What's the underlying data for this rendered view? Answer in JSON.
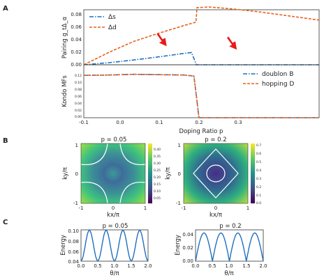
{
  "panels": {
    "A": "A",
    "B": "B",
    "C": "C"
  },
  "colors": {
    "blue": "#1f6fbf",
    "orange": "#e8601a",
    "arrow": "#e81a1a"
  },
  "chart_data": [
    {
      "id": "pairing",
      "type": "line",
      "panel": "A",
      "ylabel": "Pairing g_tΔ_α",
      "xlim": [
        -0.1,
        0.37
      ],
      "ylim": [
        0,
        0.08
      ],
      "yticks": [
        "0.00",
        "0.02",
        "0.04",
        "0.06",
        "0.08"
      ],
      "legend_position": "top-left",
      "series": [
        {
          "name": "Δs",
          "color": "#1f6fbf",
          "style": "dashdot",
          "x": [
            -0.1,
            -0.05,
            0.0,
            0.05,
            0.1,
            0.115,
            0.125,
            0.37
          ],
          "y": [
            0.0,
            0.003,
            0.007,
            0.0115,
            0.0165,
            0.0178,
            0.0,
            0.0
          ]
        },
        {
          "name": "Δd",
          "color": "#e8601a",
          "style": "dashed",
          "x": [
            -0.1,
            -0.05,
            0.0,
            0.05,
            0.1,
            0.124,
            0.126,
            0.15,
            0.2,
            0.25,
            0.3,
            0.37
          ],
          "y": [
            0.0,
            0.018,
            0.034,
            0.046,
            0.057,
            0.062,
            0.083,
            0.084,
            0.081,
            0.077,
            0.072,
            0.065
          ]
        }
      ],
      "annotations": [
        {
          "type": "arrow",
          "x": 0.06,
          "y": 0.03
        },
        {
          "type": "arrow",
          "x": 0.2,
          "y": 0.025
        }
      ]
    },
    {
      "id": "kondo",
      "type": "line",
      "panel": "A",
      "ylabel": "Kondo MFs",
      "xlabel": "Doping Ratio p",
      "xlim": [
        -0.1,
        0.37
      ],
      "xticks": [
        "-0.1",
        "0.0",
        "0.1",
        "0.2",
        "0.3"
      ],
      "ylim": [
        0,
        0.15
      ],
      "yticks": [
        "0.00",
        "0.02",
        "0.04",
        "0.06",
        "0.08",
        "0.10",
        "0.12"
      ],
      "legend_position": "top-right",
      "series": [
        {
          "name": "doublon B",
          "color": "#1f6fbf",
          "style": "dashdot",
          "x": [
            -0.1,
            -0.05,
            0.0,
            0.05,
            0.1,
            0.12,
            0.125,
            0.13,
            0.37
          ],
          "y": [
            0.12,
            0.121,
            0.123,
            0.122,
            0.121,
            0.118,
            0.06,
            0.0,
            0.0
          ]
        },
        {
          "name": "hopping D",
          "color": "#e8601a",
          "style": "dashed",
          "x": [
            -0.1,
            -0.05,
            0.0,
            0.05,
            0.1,
            0.12,
            0.125,
            0.13,
            0.37
          ],
          "y": [
            0.12,
            0.121,
            0.123,
            0.122,
            0.121,
            0.118,
            0.06,
            0.0,
            0.0
          ]
        }
      ]
    },
    {
      "id": "map1",
      "type": "heatmap",
      "panel": "B",
      "title": "p = 0.05",
      "xlabel": "kx/π",
      "ylabel": "ky/π",
      "xticks": [
        "-1",
        "0",
        "1"
      ],
      "yticks": [
        "1",
        "0",
        "-1"
      ],
      "colorbar_ticks": [
        "0.40",
        "0.35",
        "0.30",
        "0.25",
        "0.20",
        "0.15",
        "0.10",
        "0.05"
      ],
      "contour": "fermi surface arcs around corners"
    },
    {
      "id": "map2",
      "type": "heatmap",
      "panel": "B",
      "title": "p = 0.2",
      "xlabel": "kx/π",
      "ylabel": "ky/π",
      "xticks": [
        "-1",
        "0",
        "1"
      ],
      "yticks": [
        "1",
        "0",
        "-1"
      ],
      "colorbar_ticks": [
        "0.7",
        "0.6",
        "0.5",
        "0.4",
        "0.3",
        "0.2",
        "0.1",
        "0.0"
      ],
      "contour": "two closed pockets around center"
    },
    {
      "id": "energy1",
      "type": "line",
      "panel": "C",
      "title": "p = 0.05",
      "xlabel": "θ/π",
      "ylabel": "Energy",
      "xlim": [
        0,
        2
      ],
      "ylim": [
        0.04,
        0.1
      ],
      "xticks": [
        "0.0",
        "0.5",
        "1.0",
        "1.5",
        "2.0"
      ],
      "yticks": [
        "0.10",
        "0.08",
        "0.06",
        "0.04"
      ],
      "series": [
        {
          "color": "#1f6fbf",
          "formula": "0.07 - 0.029*cos(4θ)"
        }
      ]
    },
    {
      "id": "energy2",
      "type": "line",
      "panel": "C",
      "title": "p = 0.2",
      "xlabel": "θ/π",
      "ylabel": "Energy",
      "xlim": [
        0,
        2
      ],
      "ylim": [
        0,
        0.05
      ],
      "xticks": [
        "0.0",
        "0.5",
        "1.0",
        "1.5",
        "2.0"
      ],
      "yticks": [
        "0.04",
        "0.02",
        "0.00"
      ],
      "series": [
        {
          "color": "#1f6fbf",
          "formula": "0.045*|sin(2θ)|"
        }
      ]
    }
  ]
}
